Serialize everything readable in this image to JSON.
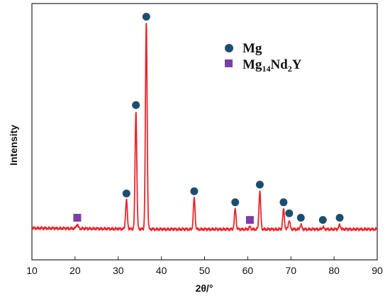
{
  "chart_data": {
    "type": "line",
    "xlabel": "2θ/°",
    "ylabel": "Intensity",
    "xlim": [
      10,
      90
    ],
    "xticks": [
      10,
      20,
      30,
      40,
      50,
      60,
      70,
      80,
      90
    ],
    "ylim": [
      0,
      100
    ],
    "grid": false,
    "legend_position": "top-right",
    "series": [
      {
        "type": "line",
        "color": "#e8262c",
        "baseline": 2,
        "peaks": [
          {
            "x": 20.5,
            "h": 2
          },
          {
            "x": 31.9,
            "h": 13
          },
          {
            "x": 34.1,
            "h": 53
          },
          {
            "x": 36.5,
            "h": 93
          },
          {
            "x": 47.6,
            "h": 14
          },
          {
            "x": 57.1,
            "h": 9
          },
          {
            "x": 60.5,
            "h": 1
          },
          {
            "x": 62.8,
            "h": 17
          },
          {
            "x": 68.3,
            "h": 9
          },
          {
            "x": 69.6,
            "h": 4
          },
          {
            "x": 72.3,
            "h": 2
          },
          {
            "x": 77.4,
            "h": 1
          },
          {
            "x": 81.3,
            "h": 2
          }
        ]
      }
    ],
    "markers": [
      {
        "phase": "Mg",
        "shape": "circle",
        "color": "#1b4f72",
        "x": [
          31.9,
          34.1,
          36.5,
          47.6,
          57.1,
          62.8,
          68.3,
          69.6,
          72.3,
          77.4,
          81.3
        ]
      },
      {
        "phase": "Mg14Nd2Y",
        "shape": "square",
        "color": "#7b3fa5",
        "x": [
          20.5,
          60.5
        ]
      }
    ],
    "legend": [
      {
        "symbol": "circle",
        "color": "#1b4f72",
        "label": "Mg"
      },
      {
        "symbol": "square",
        "color": "#7b3fa5",
        "label_parts": [
          "Mg",
          "14",
          "Nd",
          "2",
          "Y"
        ]
      }
    ]
  }
}
